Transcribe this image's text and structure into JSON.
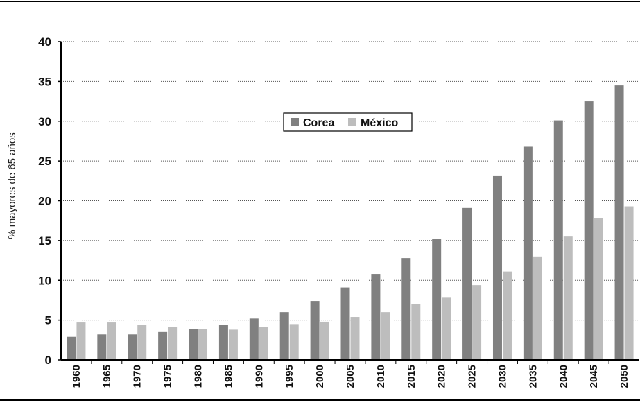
{
  "chart_data": {
    "type": "bar",
    "title": "",
    "xlabel": "",
    "ylabel": "% mayores de 65 años",
    "ylim": [
      0,
      40
    ],
    "yticks": [
      0,
      5,
      10,
      15,
      20,
      25,
      30,
      35,
      40
    ],
    "grid": "horizontal dotted",
    "legend_position": "top-center",
    "categories": [
      "1960",
      "1965",
      "1970",
      "1975",
      "1980",
      "1985",
      "1990",
      "1995",
      "2000",
      "2005",
      "2010",
      "2015",
      "2020",
      "2025",
      "2030",
      "2035",
      "2040",
      "2045",
      "2050"
    ],
    "series": [
      {
        "name": "Corea",
        "color": "#808080",
        "values": [
          2.9,
          3.2,
          3.2,
          3.5,
          3.9,
          4.4,
          5.2,
          6.0,
          7.4,
          9.1,
          10.8,
          12.8,
          15.2,
          19.1,
          23.1,
          26.8,
          30.1,
          32.5,
          34.5
        ]
      },
      {
        "name": "México",
        "color": "#bdbdbd",
        "values": [
          4.7,
          4.7,
          4.4,
          4.1,
          3.9,
          3.8,
          4.1,
          4.5,
          4.8,
          5.4,
          6.0,
          7.0,
          7.9,
          9.4,
          11.1,
          13.0,
          15.5,
          17.8,
          19.3
        ]
      }
    ]
  }
}
